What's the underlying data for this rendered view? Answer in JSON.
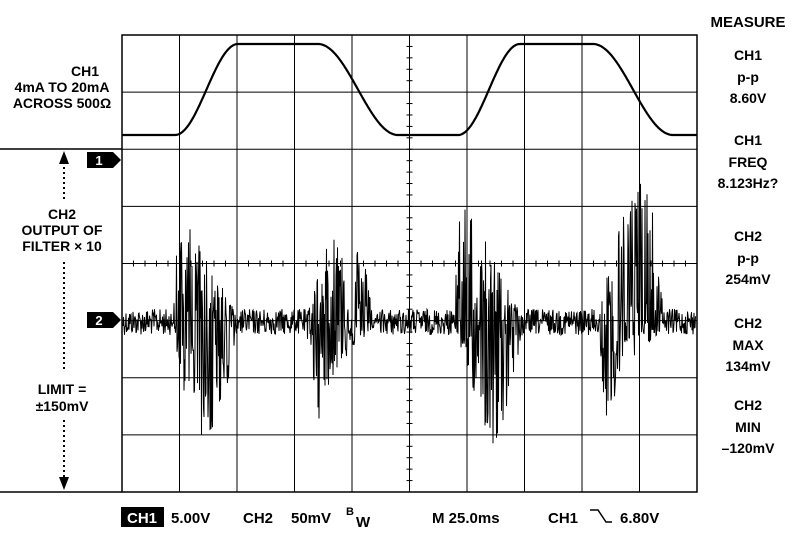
{
  "left_labels": {
    "ch1": [
      "CH1",
      "4mA TO 20mA",
      "ACROSS 500Ω"
    ],
    "ch2": [
      "CH2",
      "OUTPUT OF",
      "FILTER × 10"
    ],
    "limit": [
      "LIMIT =",
      "±150mV"
    ]
  },
  "markers": [
    "1",
    "2"
  ],
  "measure": {
    "title": "MEASURE",
    "items": [
      {
        "channel": "CH1",
        "name": "p-p",
        "value": "8.60V"
      },
      {
        "channel": "CH1",
        "name": "FREQ",
        "value": "8.123Hz?"
      },
      {
        "channel": "CH2",
        "name": "p-p",
        "value": "254mV"
      },
      {
        "channel": "CH2",
        "name": "MAX",
        "value": "134mV"
      },
      {
        "channel": "CH2",
        "name": "MIN",
        "value": "–120mV"
      }
    ]
  },
  "footer": {
    "ch1": "CH1",
    "ch1_scale": "5.00V",
    "ch2": "CH2",
    "ch2_scale": "50mV",
    "bw_b": "B",
    "bw_w": "W",
    "timebase": "M 25.0ms",
    "trigger_source": "CH1",
    "trigger_level": "6.80V"
  }
}
